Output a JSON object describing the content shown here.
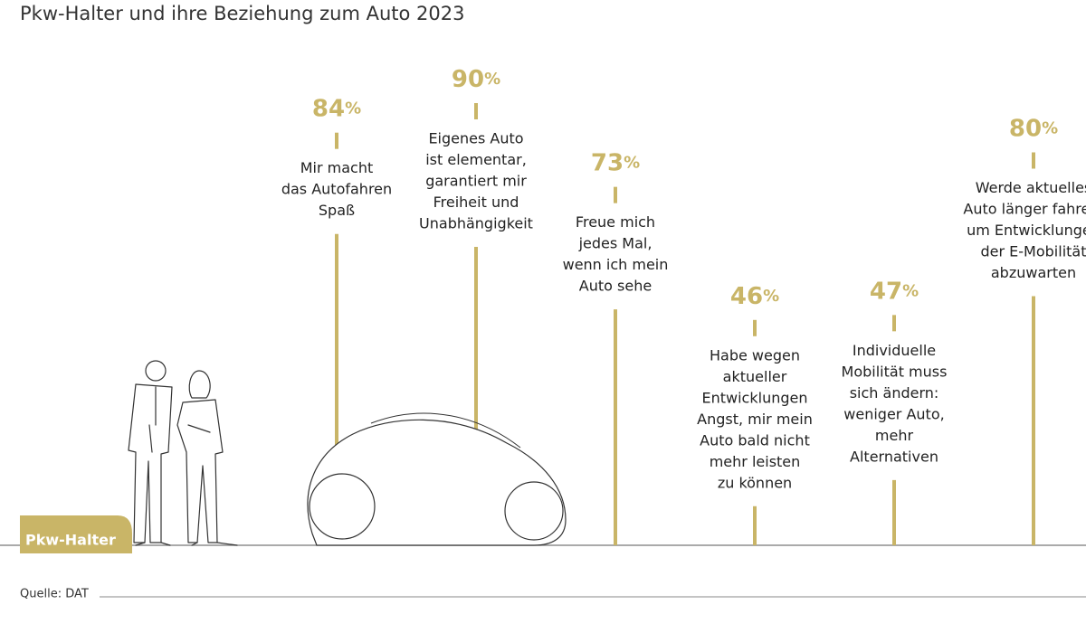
{
  "chart_data": {
    "type": "lollipop",
    "title": "Pkw-Halter und ihre Beziehung zum Auto 2023",
    "group_label": "Pkw-Halter",
    "source": "Quelle: DAT",
    "color": "#c9b567",
    "categories": [
      [
        "Mir macht",
        "das Autofahren",
        "Spaß"
      ],
      [
        "Eigenes Auto",
        "ist elementar,",
        "garantiert mir",
        "Freiheit und",
        "Unabhängigkeit"
      ],
      [
        "Freue mich",
        "jedes Mal,",
        "wenn ich mein",
        "Auto sehe"
      ],
      [
        "Habe wegen",
        "aktueller",
        "Entwicklungen",
        "Angst, mir mein",
        "Auto bald nicht",
        "mehr leisten",
        "zu können"
      ],
      [
        "Individuelle",
        "Mobilität muss",
        "sich ändern:",
        "weniger Auto,",
        "mehr",
        "Alternativen"
      ],
      [
        "Werde aktuelles",
        "Auto länger fahren,",
        "um Entwicklungen",
        "der E-Mobilität",
        "abzuwarten"
      ]
    ],
    "values": [
      84,
      90,
      73,
      46,
      47,
      80
    ],
    "value_labels": [
      "84%",
      "90%",
      "73%",
      "46%",
      "47%",
      "80%"
    ]
  }
}
